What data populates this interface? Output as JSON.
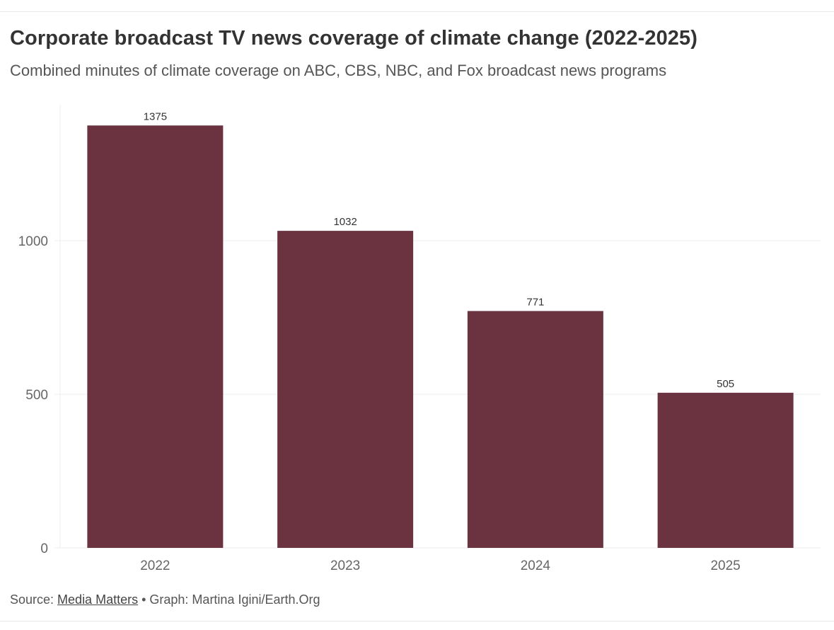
{
  "header": {
    "title": "Corporate broadcast TV news coverage of climate change (2022-2025)",
    "subtitle": "Combined minutes of climate coverage on ABC, CBS, NBC, and Fox broadcast news programs"
  },
  "footer": {
    "source_prefix": "Source: ",
    "source_link": "Media Matters",
    "separator": " • ",
    "credit": "Graph: Martina Igini/Earth.Org"
  },
  "colors": {
    "bar": "#6b3340",
    "grid": "#ececec",
    "axis_text": "#666666",
    "label_text": "#333333"
  },
  "chart_data": {
    "type": "bar",
    "title": "Corporate broadcast TV news coverage of climate change (2022-2025)",
    "subtitle": "Combined minutes of climate coverage on ABC, CBS, NBC, and Fox broadcast news programs",
    "categories": [
      "2022",
      "2023",
      "2024",
      "2025"
    ],
    "values": [
      1375,
      1032,
      771,
      505
    ],
    "data_labels": [
      "1375",
      "1032",
      "771",
      "505"
    ],
    "xlabel": "",
    "ylabel": "",
    "ylim": [
      0,
      1450
    ],
    "yticks": [
      0,
      500,
      1000
    ],
    "ytick_labels": [
      "0",
      "500",
      "1000"
    ],
    "grid": true,
    "legend": "none"
  }
}
